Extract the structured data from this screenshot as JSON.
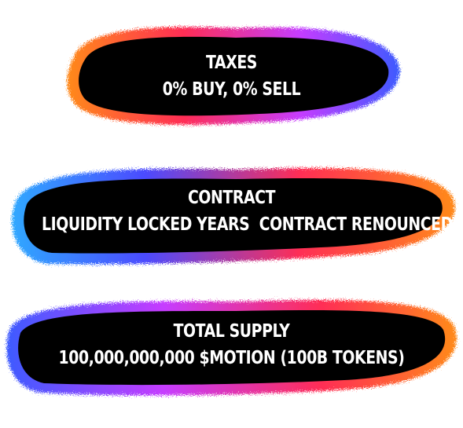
{
  "cards": [
    {
      "title": "TAXES",
      "detail": "0% BUY, 0% SELL",
      "colors": [
        "#ff7a1a",
        "#ff2d55",
        "#c63cff",
        "#3d5bff"
      ]
    },
    {
      "title": "CONTRACT",
      "detail": "LIQUIDITY LOCKED YEARS  CONTRACT RENOUNCED",
      "colors": [
        "#2fa8ff",
        "#4b4bff",
        "#ff2d55",
        "#ff8a1a"
      ]
    },
    {
      "title": "TOTAL SUPPLY",
      "detail": "100,000,000,000 $MOTION (100B TOKENS)",
      "colors": [
        "#3d5bff",
        "#c63cff",
        "#ff2d55",
        "#ff8a1a"
      ]
    }
  ]
}
